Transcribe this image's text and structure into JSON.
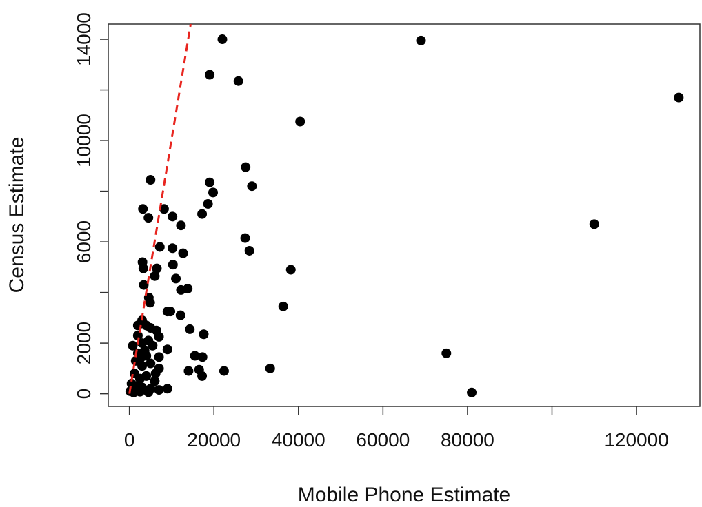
{
  "chart_data": {
    "type": "scatter",
    "xlabel": "Mobile Phone Estimate",
    "ylabel": "Census Estimate",
    "xlim": [
      -5000,
      135000
    ],
    "ylim": [
      -500,
      14600
    ],
    "x_ticks": [
      0,
      20000,
      40000,
      60000,
      80000,
      100000,
      120000
    ],
    "x_tick_labels": [
      "0",
      "20000",
      "40000",
      "60000",
      "80000",
      "",
      "120000"
    ],
    "y_ticks": [
      0,
      2000,
      4000,
      6000,
      8000,
      10000,
      12000,
      14000
    ],
    "y_tick_labels": [
      "0",
      "2000",
      "",
      "6000",
      "",
      "10000",
      "",
      "14000"
    ],
    "grid": false,
    "reference_line": {
      "style": "dashed",
      "color": "#e8251f",
      "points": [
        [
          0,
          0
        ],
        [
          14500,
          14600
        ]
      ]
    },
    "points": [
      [
        22000,
        14000
      ],
      [
        69000,
        13950
      ],
      [
        19000,
        12600
      ],
      [
        25800,
        12350
      ],
      [
        130000,
        11700
      ],
      [
        40400,
        10750
      ],
      [
        27500,
        8950
      ],
      [
        5000,
        8450
      ],
      [
        19000,
        8350
      ],
      [
        29000,
        8200
      ],
      [
        19800,
        7950
      ],
      [
        18600,
        7500
      ],
      [
        3200,
        7300
      ],
      [
        8200,
        7300
      ],
      [
        17200,
        7100
      ],
      [
        10200,
        7000
      ],
      [
        4500,
        6950
      ],
      [
        12200,
        6650
      ],
      [
        110000,
        6700
      ],
      [
        27400,
        6150
      ],
      [
        7200,
        5800
      ],
      [
        10200,
        5750
      ],
      [
        12700,
        5550
      ],
      [
        28400,
        5650
      ],
      [
        3100,
        5200
      ],
      [
        10300,
        5100
      ],
      [
        3300,
        4950
      ],
      [
        6500,
        4950
      ],
      [
        38200,
        4900
      ],
      [
        6000,
        4650
      ],
      [
        11000,
        4550
      ],
      [
        12200,
        4100
      ],
      [
        13800,
        4150
      ],
      [
        3400,
        4300
      ],
      [
        4600,
        3800
      ],
      [
        4900,
        3600
      ],
      [
        36400,
        3450
      ],
      [
        9000,
        3250
      ],
      [
        9700,
        3250
      ],
      [
        12100,
        3100
      ],
      [
        3000,
        2900
      ],
      [
        4000,
        2700
      ],
      [
        5000,
        2600
      ],
      [
        14300,
        2550
      ],
      [
        17600,
        2350
      ],
      [
        6400,
        2500
      ],
      [
        7000,
        2250
      ],
      [
        2000,
        2300
      ],
      [
        3000,
        2000
      ],
      [
        5500,
        1900
      ],
      [
        9000,
        1750
      ],
      [
        2000,
        1600
      ],
      [
        4000,
        1500
      ],
      [
        7000,
        1450
      ],
      [
        15500,
        1500
      ],
      [
        17300,
        1450
      ],
      [
        75000,
        1600
      ],
      [
        1500,
        1300
      ],
      [
        3000,
        1100
      ],
      [
        5000,
        1200
      ],
      [
        7000,
        1000
      ],
      [
        14000,
        900
      ],
      [
        16500,
        950
      ],
      [
        17200,
        700
      ],
      [
        22400,
        900
      ],
      [
        33300,
        1000
      ],
      [
        1200,
        800
      ],
      [
        2500,
        600
      ],
      [
        4000,
        700
      ],
      [
        6000,
        500
      ],
      [
        500,
        400
      ],
      [
        1500,
        300
      ],
      [
        3000,
        250
      ],
      [
        5000,
        200
      ],
      [
        7000,
        150
      ],
      [
        9000,
        200
      ],
      [
        200,
        100
      ],
      [
        1000,
        50
      ],
      [
        2500,
        80
      ],
      [
        4500,
        60
      ],
      [
        81000,
        50
      ],
      [
        800,
        1900
      ],
      [
        2000,
        2700
      ],
      [
        4500,
        2100
      ],
      [
        3600,
        1700
      ],
      [
        6200,
        800
      ],
      [
        2600,
        1400
      ]
    ]
  }
}
